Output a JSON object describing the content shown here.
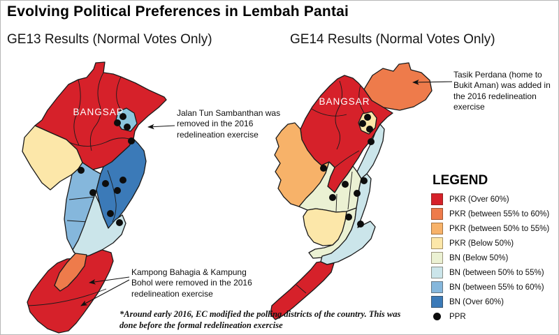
{
  "header": {
    "title": "Evolving Political Preferences in Lembah Pantai"
  },
  "maps": {
    "ge13": {
      "subtitle": "GE13 Results (Normal Votes Only)",
      "region_label": "BANGSAR",
      "ppr_dots": [
        [
          160,
          81
        ],
        [
          152,
          90
        ],
        [
          166,
          96
        ],
        [
          172,
          116
        ],
        [
          100,
          158
        ],
        [
          160,
          172
        ],
        [
          135,
          177
        ],
        [
          152,
          187
        ],
        [
          117,
          190
        ],
        [
          142,
          220
        ],
        [
          155,
          233
        ]
      ]
    },
    "ge14": {
      "subtitle": "GE14 Results (Normal Votes Only)",
      "region_label": "BANGSAR",
      "ppr_dots": [
        [
          140,
          82
        ],
        [
          133,
          91
        ],
        [
          143,
          99
        ],
        [
          145,
          117
        ],
        [
          77,
          155
        ],
        [
          135,
          173
        ],
        [
          108,
          178
        ],
        [
          125,
          191
        ],
        [
          90,
          197
        ],
        [
          113,
          225
        ],
        [
          130,
          235
        ]
      ]
    }
  },
  "annotations": {
    "jalan": "Jalan Tun Sambanthan was removed in the 2016 redelineation exercise",
    "tasik": "Tasik Perdana (home to Bukit Aman) was added in the 2016 redelineation exercise",
    "kampong": "Kampong Bahagia & Kampung Bohol were removed in the 2016 redelineation exercise",
    "footnote": "*Around early 2016, EC modified the polling districts of the country. This was done before the formal redelineation exercise"
  },
  "legend": {
    "title": "LEGEND",
    "items": [
      {
        "label": "PKR (Over 60%)",
        "color": "#d6212a",
        "type": "swatch"
      },
      {
        "label": "PKR (between 55% to 60%)",
        "color": "#ee7b4b",
        "type": "swatch"
      },
      {
        "label": "PKR (between 50% to 55%)",
        "color": "#f7b269",
        "type": "swatch"
      },
      {
        "label": "PKR (Below 50%)",
        "color": "#fce7a9",
        "type": "swatch"
      },
      {
        "label": "BN (Below 50%)",
        "color": "#ebf1d3",
        "type": "swatch"
      },
      {
        "label": "BN (between 50% to 55%)",
        "color": "#cbe5ea",
        "type": "swatch"
      },
      {
        "label": "BN (between 55% to 60%)",
        "color": "#85b7dc",
        "type": "swatch"
      },
      {
        "label": "BN (Over 60%)",
        "color": "#3b7ab8",
        "type": "swatch"
      },
      {
        "label": "PPR",
        "color": "#0d0d0d",
        "type": "dot"
      }
    ]
  },
  "colors": {
    "pkr60": "#d6212a",
    "pkr55": "#ee7b4b",
    "pkr50": "#f7b269",
    "pkrb": "#fce7a9",
    "bnb": "#ebf1d3",
    "bn50": "#cbe5ea",
    "bn55": "#85b7dc",
    "bn60": "#3b7ab8",
    "enclave": "#8cc6de"
  }
}
